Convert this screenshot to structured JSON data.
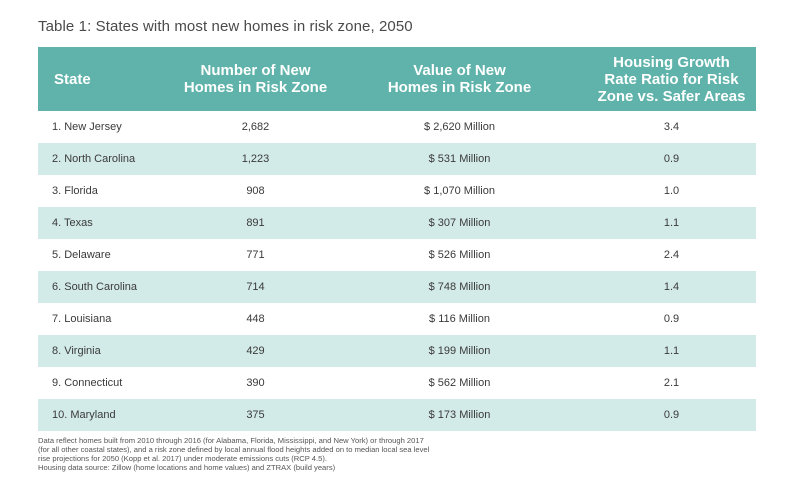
{
  "caption": "Table 1: States with most new homes in risk zone, 2050",
  "table": {
    "headers": {
      "state": "State",
      "homes": [
        "Number of New",
        "Homes in Risk Zone"
      ],
      "value": [
        "Value of New",
        "Homes in Risk Zone"
      ],
      "ratio": [
        "Housing Growth",
        "Rate Ratio for Risk",
        "Zone vs. Safer Areas"
      ]
    },
    "rows": [
      {
        "state": "1. New Jersey",
        "homes": "2,682",
        "value": "$ 2,620 Million",
        "ratio": "3.4"
      },
      {
        "state": "2. North Carolina",
        "homes": "1,223",
        "value": "$ 531 Million",
        "ratio": "0.9"
      },
      {
        "state": "3. Florida",
        "homes": "908",
        "value": "$ 1,070 Million",
        "ratio": "1.0"
      },
      {
        "state": "4. Texas",
        "homes": "891",
        "value": "$ 307 Million",
        "ratio": "1.1"
      },
      {
        "state": "5. Delaware",
        "homes": "771",
        "value": "$ 526 Million",
        "ratio": "2.4"
      },
      {
        "state": "6. South Carolina",
        "homes": "714",
        "value": "$ 748 Million",
        "ratio": "1.4"
      },
      {
        "state": "7. Louisiana",
        "homes": "448",
        "value": "$ 116 Million",
        "ratio": "0.9"
      },
      {
        "state": "8. Virginia",
        "homes": "429",
        "value": "$ 199 Million",
        "ratio": "1.1"
      },
      {
        "state": "9. Connecticut",
        "homes": "390",
        "value": "$ 562 Million",
        "ratio": "2.1"
      },
      {
        "state": "10. Maryland",
        "homes": "375",
        "value": "$ 173 Million",
        "ratio": "0.9"
      }
    ]
  },
  "notes": [
    "Data reflect homes built from 2010 through 2016 (for Alabama, Florida, Mississippi, and New York) or through 2017",
    "(for all other coastal states), and a risk zone defined by local annual flood heights added on to median local sea level",
    "rise projections for 2050 (Kopp et al. 2017) under moderate emissions cuts (RCP 4.5).",
    "Housing data source: Zillow (home locations and home values) and ZTRAX (build years)"
  ],
  "colors": {
    "header_bg": "#5fb3aa",
    "stripe_bg": "#d3ebe8",
    "header_text": "#ffffff"
  }
}
